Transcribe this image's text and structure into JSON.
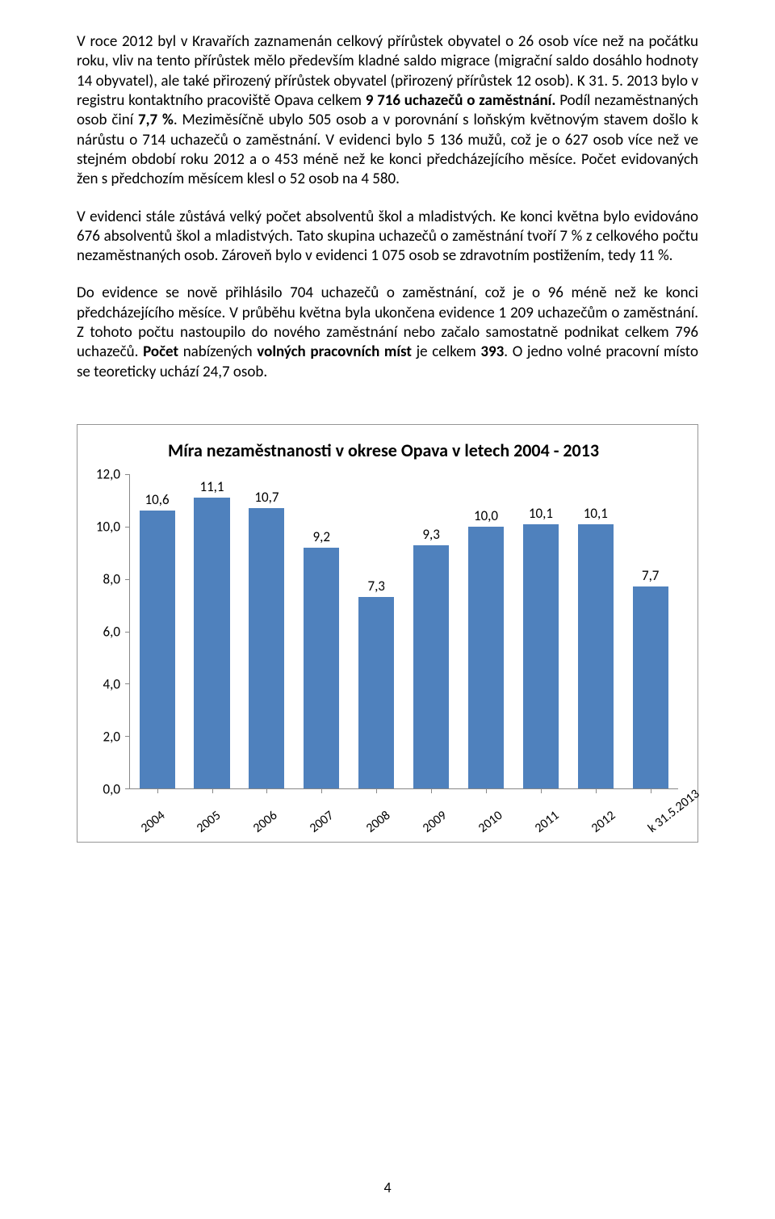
{
  "paragraphs": {
    "p1": "V roce 2012 byl v Kravařích zaznamenán celkový přírůstek obyvatel o 26 osob více než na počátku roku, vliv na tento přírůstek mělo především kladné saldo migrace (migrační saldo dosáhlo hodnoty 14 obyvatel), ale také přirozený přírůstek obyvatel (přirozený přírůstek 12 osob). K 31. 5. 2013 bylo v registru kontaktního pracoviště Opava celkem ",
    "p1_bold1": "9 716 uchazečů o zaměstnání.",
    "p1_a": " Podíl nezaměstnaných osob činí ",
    "p1_bold2": "7,7 %",
    "p1_b": ". Meziměsíčně ubylo 505 osob a v porovnání s loňským květnovým stavem došlo k nárůstu o 714 uchazečů o zaměstnání. V evidenci bylo 5 136 mužů, což je o 627 osob více než ve stejném období roku 2012 a o 453 méně než ke konci předcházejícího měsíce. Počet evidovaných žen s předchozím měsícem klesl o 52 osob na 4 580.",
    "p2": "V evidenci stále zůstává velký počet absolventů škol a mladistvých. Ke konci května bylo evidováno 676 absolventů škol a mladistvých. Tato skupina uchazečů o zaměstnání tvoří 7 % z celkového počtu nezaměstnaných osob. Zároveň bylo v evidenci 1 075 osob se zdravotním postižením, tedy 11 %.",
    "p3_a": "Do evidence se nově přihlásilo 704 uchazečů o zaměstnání, což je o 96 méně než ke konci předcházejícího měsíce. V průběhu května byla ukončena evidence 1 209 uchazečům o zaměstnání. Z tohoto počtu nastoupilo do nového zaměstnání nebo začalo samostatně podnikat celkem 796 uchazečů. ",
    "p3_bold1": "Počet",
    "p3_b": " nabízených ",
    "p3_bold2": "volných pracovních míst",
    "p3_c": " je celkem ",
    "p3_bold3": "393",
    "p3_d": ". O jedno volné pracovní místo se teoreticky uchází 24,7 osob."
  },
  "chart": {
    "type": "bar",
    "title": "Míra nezaměstnanosti v okrese Opava v letech 2004 - 2013",
    "categories": [
      "2004",
      "2005",
      "2006",
      "2007",
      "2008",
      "2009",
      "2010",
      "2011",
      "2012",
      "k 31.5.2013"
    ],
    "values": [
      10.6,
      11.1,
      10.7,
      9.2,
      7.3,
      9.3,
      10.0,
      10.1,
      10.1,
      7.7
    ],
    "value_labels": [
      "10,6",
      "11,1",
      "10,7",
      "9,2",
      "7,3",
      "9,3",
      "10,0",
      "10,1",
      "10,1",
      "7,7"
    ],
    "bar_color": "#4f81bd",
    "ylim": [
      0,
      12
    ],
    "ytick_step": 2,
    "ytick_labels": [
      "0,0",
      "2,0",
      "4,0",
      "6,0",
      "8,0",
      "10,0",
      "12,0"
    ],
    "background_color": "#ffffff",
    "axis_color": "#888888",
    "label_fontsize": 17,
    "title_fontsize": 22,
    "bar_width_pct": 6.5,
    "slot_pct": 10,
    "first_offset_pct": 1.7
  },
  "page_number": "4"
}
